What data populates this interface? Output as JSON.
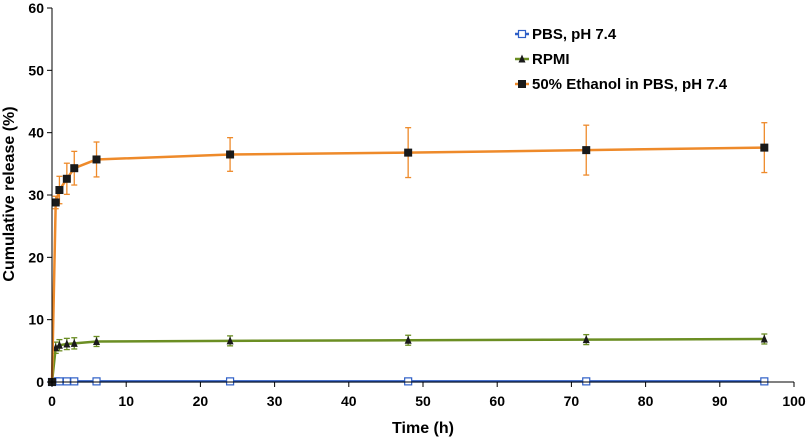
{
  "chart_data": {
    "type": "line",
    "title": "",
    "xlabel": "Time (h)",
    "ylabel": "Cumulative release (%)",
    "xlim": [
      0,
      100
    ],
    "ylim": [
      0,
      60
    ],
    "xticks": [
      0,
      10,
      20,
      30,
      40,
      50,
      60,
      70,
      80,
      90,
      100
    ],
    "yticks": [
      0,
      10,
      20,
      30,
      40,
      50,
      60
    ],
    "legend_position": "top-right",
    "x": [
      0,
      0.5,
      1,
      2,
      3,
      6,
      24,
      48,
      72,
      96
    ],
    "series": [
      {
        "name": "PBS, pH 7.4",
        "color": "#2e5fc7",
        "marker": "open-square",
        "values": [
          0,
          0.1,
          0.1,
          0.1,
          0.1,
          0.1,
          0.1,
          0.1,
          0.1,
          0.1
        ],
        "errors": [
          0,
          0,
          0,
          0,
          0,
          0,
          0,
          0,
          0,
          0
        ]
      },
      {
        "name": "RPMI",
        "color": "#6b8e23",
        "marker": "filled-triangle",
        "values": [
          0,
          5.5,
          5.9,
          6.1,
          6.2,
          6.5,
          6.6,
          6.7,
          6.8,
          6.9
        ],
        "errors": [
          0,
          0.9,
          0.9,
          0.9,
          0.9,
          0.8,
          0.8,
          0.8,
          0.8,
          0.8
        ]
      },
      {
        "name": "50% Ethanol in PBS, pH 7.4",
        "color": "#ee8a2a",
        "marker": "filled-square",
        "values": [
          0,
          28.8,
          30.8,
          32.6,
          34.3,
          35.7,
          36.5,
          36.8,
          37.2,
          37.6
        ],
        "errors": [
          0,
          1.0,
          2.2,
          2.5,
          2.7,
          2.8,
          2.7,
          4.0,
          4.0,
          4.0
        ]
      }
    ]
  }
}
